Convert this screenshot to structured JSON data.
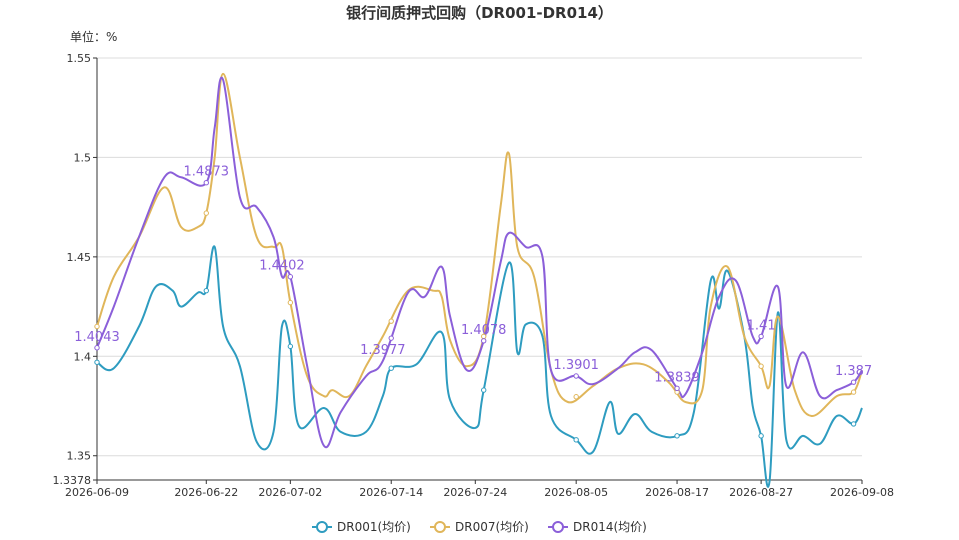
{
  "chart_data": {
    "type": "line",
    "title": "银行间质押式回购（DR001-DR014）",
    "unit_label": "单位：%",
    "ylim": [
      1.3378,
      1.55
    ],
    "y_ticks": [
      "1.3378",
      "1.35",
      "1.4",
      "1.45",
      "1.5",
      "1.55"
    ],
    "y_tick_values": [
      1.3378,
      1.35,
      1.4,
      1.45,
      1.5,
      1.55
    ],
    "x_start": "2026-06-09",
    "x_end": "2026-09-08",
    "x_ticks": [
      "2026-06-09",
      "2026-06-22",
      "2026-07-02",
      "2026-07-14",
      "2026-07-24",
      "2026-08-05",
      "2026-08-17",
      "2026-08-27",
      "2026-09-08"
    ],
    "grid": true,
    "legend_position": "bottom",
    "series": [
      {
        "name": "DR001(均价)",
        "color": "#2e9cc0",
        "points": [
          [
            "2026-06-09",
            1.397
          ],
          [
            "2026-06-11",
            1.394
          ],
          [
            "2026-06-14",
            1.415
          ],
          [
            "2026-06-16",
            1.435
          ],
          [
            "2026-06-18",
            1.433
          ],
          [
            "2026-06-19",
            1.425
          ],
          [
            "2026-06-21",
            1.432
          ],
          [
            "2026-06-22",
            1.433
          ],
          [
            "2026-06-23",
            1.455
          ],
          [
            "2026-06-24",
            1.415
          ],
          [
            "2026-06-26",
            1.395
          ],
          [
            "2026-06-28",
            1.357
          ],
          [
            "2026-06-30",
            1.362
          ],
          [
            "2026-07-01",
            1.415
          ],
          [
            "2026-07-02",
            1.405
          ],
          [
            "2026-07-03",
            1.365
          ],
          [
            "2026-07-06",
            1.374
          ],
          [
            "2026-07-08",
            1.362
          ],
          [
            "2026-07-11",
            1.362
          ],
          [
            "2026-07-13",
            1.38
          ],
          [
            "2026-07-14",
            1.394
          ],
          [
            "2026-07-17",
            1.396
          ],
          [
            "2026-07-20",
            1.412
          ],
          [
            "2026-07-21",
            1.378
          ],
          [
            "2026-07-24",
            1.364
          ],
          [
            "2026-07-25",
            1.383
          ],
          [
            "2026-07-28",
            1.447
          ],
          [
            "2026-07-29",
            1.402
          ],
          [
            "2026-07-30",
            1.416
          ],
          [
            "2026-08-01",
            1.41
          ],
          [
            "2026-08-02",
            1.37
          ],
          [
            "2026-08-05",
            1.358
          ],
          [
            "2026-08-07",
            1.352
          ],
          [
            "2026-08-09",
            1.377
          ],
          [
            "2026-08-10",
            1.361
          ],
          [
            "2026-08-12",
            1.371
          ],
          [
            "2026-08-14",
            1.362
          ],
          [
            "2026-08-17",
            1.36
          ],
          [
            "2026-08-19",
            1.372
          ],
          [
            "2026-08-21",
            1.438
          ],
          [
            "2026-08-22",
            1.424
          ],
          [
            "2026-08-23",
            1.443
          ],
          [
            "2026-08-25",
            1.41
          ],
          [
            "2026-08-26",
            1.375
          ],
          [
            "2026-08-27",
            1.36
          ],
          [
            "2026-08-28",
            1.337
          ],
          [
            "2026-08-29",
            1.422
          ],
          [
            "2026-08-30",
            1.358
          ],
          [
            "2026-09-01",
            1.36
          ],
          [
            "2026-09-03",
            1.356
          ],
          [
            "2026-09-05",
            1.37
          ],
          [
            "2026-09-07",
            1.366
          ],
          [
            "2026-09-08",
            1.374
          ]
        ]
      },
      {
        "name": "DR007(均价)",
        "color": "#e0b65a",
        "points": [
          [
            "2026-06-09",
            1.415
          ],
          [
            "2026-06-11",
            1.44
          ],
          [
            "2026-06-14",
            1.46
          ],
          [
            "2026-06-17",
            1.485
          ],
          [
            "2026-06-19",
            1.465
          ],
          [
            "2026-06-21",
            1.465
          ],
          [
            "2026-06-22",
            1.472
          ],
          [
            "2026-06-23",
            1.5
          ],
          [
            "2026-06-24",
            1.542
          ],
          [
            "2026-06-26",
            1.5
          ],
          [
            "2026-06-28",
            1.46
          ],
          [
            "2026-06-30",
            1.455
          ],
          [
            "2026-07-01",
            1.455
          ],
          [
            "2026-07-02",
            1.427
          ],
          [
            "2026-07-04",
            1.39
          ],
          [
            "2026-07-06",
            1.38
          ],
          [
            "2026-07-07",
            1.383
          ],
          [
            "2026-07-09",
            1.38
          ],
          [
            "2026-07-11",
            1.395
          ],
          [
            "2026-07-13",
            1.41
          ],
          [
            "2026-07-16",
            1.433
          ],
          [
            "2026-07-19",
            1.433
          ],
          [
            "2026-07-20",
            1.43
          ],
          [
            "2026-07-21",
            1.408
          ],
          [
            "2026-07-23",
            1.395
          ],
          [
            "2026-07-25",
            1.41
          ],
          [
            "2026-07-27",
            1.475
          ],
          [
            "2026-07-28",
            1.502
          ],
          [
            "2026-07-29",
            1.455
          ],
          [
            "2026-07-31",
            1.44
          ],
          [
            "2026-08-02",
            1.393
          ],
          [
            "2026-08-04",
            1.377
          ],
          [
            "2026-08-07",
            1.385
          ],
          [
            "2026-08-10",
            1.394
          ],
          [
            "2026-08-13",
            1.396
          ],
          [
            "2026-08-16",
            1.387
          ],
          [
            "2026-08-18",
            1.377
          ],
          [
            "2026-08-20",
            1.383
          ],
          [
            "2026-08-21",
            1.425
          ],
          [
            "2026-08-23",
            1.445
          ],
          [
            "2026-08-25",
            1.41
          ],
          [
            "2026-08-27",
            1.395
          ],
          [
            "2026-08-28",
            1.385
          ],
          [
            "2026-08-29",
            1.42
          ],
          [
            "2026-08-31",
            1.383
          ],
          [
            "2026-09-02",
            1.37
          ],
          [
            "2026-09-05",
            1.38
          ],
          [
            "2026-09-07",
            1.382
          ],
          [
            "2026-09-08",
            1.393
          ]
        ]
      },
      {
        "name": "DR014(均价)",
        "color": "#8b5fd9",
        "points": [
          [
            "2026-06-09",
            1.4043
          ],
          [
            "2026-06-11",
            1.425
          ],
          [
            "2026-06-14",
            1.46
          ],
          [
            "2026-06-17",
            1.49
          ],
          [
            "2026-06-19",
            1.49
          ],
          [
            "2026-06-22",
            1.4873
          ],
          [
            "2026-06-23",
            1.515
          ],
          [
            "2026-06-24",
            1.539
          ],
          [
            "2026-06-26",
            1.48
          ],
          [
            "2026-06-28",
            1.475
          ],
          [
            "2026-06-30",
            1.46
          ],
          [
            "2026-07-01",
            1.4402
          ],
          [
            "2026-07-02",
            1.44
          ],
          [
            "2026-07-04",
            1.395
          ],
          [
            "2026-07-06",
            1.355
          ],
          [
            "2026-07-08",
            1.372
          ],
          [
            "2026-07-11",
            1.39
          ],
          [
            "2026-07-13",
            1.3977
          ],
          [
            "2026-07-16",
            1.432
          ],
          [
            "2026-07-18",
            1.43
          ],
          [
            "2026-07-20",
            1.445
          ],
          [
            "2026-07-21",
            1.42
          ],
          [
            "2026-07-23",
            1.393
          ],
          [
            "2026-07-25",
            1.4078
          ],
          [
            "2026-07-27",
            1.447
          ],
          [
            "2026-07-28",
            1.462
          ],
          [
            "2026-07-30",
            1.455
          ],
          [
            "2026-08-01",
            1.45
          ],
          [
            "2026-08-02",
            1.393
          ],
          [
            "2026-08-05",
            1.3901
          ],
          [
            "2026-08-07",
            1.386
          ],
          [
            "2026-08-10",
            1.394
          ],
          [
            "2026-08-12",
            1.402
          ],
          [
            "2026-08-14",
            1.403
          ],
          [
            "2026-08-17",
            1.3839
          ],
          [
            "2026-08-18",
            1.381
          ],
          [
            "2026-08-20",
            1.402
          ],
          [
            "2026-08-22",
            1.43
          ],
          [
            "2026-08-24",
            1.438
          ],
          [
            "2026-08-26",
            1.41
          ],
          [
            "2026-08-27",
            1.41
          ],
          [
            "2026-08-29",
            1.435
          ],
          [
            "2026-08-30",
            1.385
          ],
          [
            "2026-09-01",
            1.402
          ],
          [
            "2026-09-03",
            1.38
          ],
          [
            "2026-09-05",
            1.383
          ],
          [
            "2026-09-07",
            1.387
          ],
          [
            "2026-09-08",
            1.393
          ]
        ]
      }
    ],
    "annotations": [
      {
        "text": "1.4043",
        "date": "2026-06-09",
        "value": 1.4043
      },
      {
        "text": "1.4873",
        "date": "2026-06-22",
        "value": 1.4873
      },
      {
        "text": "1.4402",
        "date": "2026-07-01",
        "value": 1.4402
      },
      {
        "text": "1.3977",
        "date": "2026-07-13",
        "value": 1.3977
      },
      {
        "text": "1.4078",
        "date": "2026-07-25",
        "value": 1.4078
      },
      {
        "text": "1.3901",
        "date": "2026-08-05",
        "value": 1.3901
      },
      {
        "text": "1.3839",
        "date": "2026-08-17",
        "value": 1.3839
      },
      {
        "text": "1.41",
        "date": "2026-08-27",
        "value": 1.41
      },
      {
        "text": "1.387",
        "date": "2026-09-07",
        "value": 1.387
      }
    ],
    "dot_dates": [
      "2026-06-09",
      "2026-06-22",
      "2026-07-02",
      "2026-07-14",
      "2026-07-25",
      "2026-08-05",
      "2026-08-17",
      "2026-08-27",
      "2026-09-07"
    ]
  }
}
